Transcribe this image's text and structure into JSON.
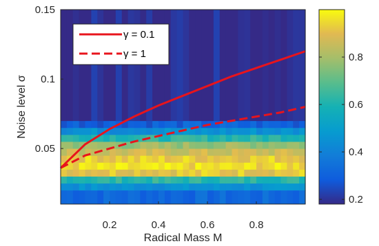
{
  "chart_data": {
    "type": "heatmap",
    "title": "",
    "xlabel": "Radical Mass M",
    "ylabel": "Noise level σ",
    "xlim": [
      0,
      1
    ],
    "ylim": [
      0.01,
      0.15
    ],
    "x_ticks": [
      {
        "v": 0.2,
        "label": "0.2"
      },
      {
        "v": 0.4,
        "label": "0.4"
      },
      {
        "v": 0.6,
        "label": "0.6"
      },
      {
        "v": 0.8,
        "label": "0.8"
      }
    ],
    "y_ticks": [
      {
        "v": 0.05,
        "label": "0.05"
      },
      {
        "v": 0.1,
        "label": "0.1"
      },
      {
        "v": 0.15,
        "label": "0.15"
      }
    ],
    "colorbar": {
      "colormap": "parula",
      "clim": [
        0.18,
        1.0
      ],
      "ticks": [
        {
          "v": 0.2,
          "label": "0.2"
        },
        {
          "v": 0.4,
          "label": "0.4"
        },
        {
          "v": 0.6,
          "label": "0.6"
        },
        {
          "v": 0.8,
          "label": "0.8"
        }
      ]
    },
    "grid": false,
    "heatmap_bands": [
      {
        "sigma_min": 0.01,
        "sigma_max": 0.02,
        "value": 0.32
      },
      {
        "sigma_min": 0.02,
        "sigma_max": 0.025,
        "value": 0.45
      },
      {
        "sigma_min": 0.025,
        "sigma_max": 0.03,
        "value": 0.62
      },
      {
        "sigma_min": 0.03,
        "sigma_max": 0.035,
        "value": 0.92
      },
      {
        "sigma_min": 0.035,
        "sigma_max": 0.04,
        "value": 0.95
      },
      {
        "sigma_min": 0.04,
        "sigma_max": 0.045,
        "value": 0.93
      },
      {
        "sigma_min": 0.045,
        "sigma_max": 0.05,
        "value": 0.86
      },
      {
        "sigma_min": 0.05,
        "sigma_max": 0.055,
        "value": 0.78
      },
      {
        "sigma_min": 0.055,
        "sigma_max": 0.06,
        "value": 0.62
      },
      {
        "sigma_min": 0.06,
        "sigma_max": 0.065,
        "value": 0.45
      },
      {
        "sigma_min": 0.065,
        "sigma_max": 0.07,
        "value": 0.3
      },
      {
        "sigma_min": 0.07,
        "sigma_max": 0.15,
        "value": 0.19
      }
    ],
    "series": [
      {
        "name": "γ = 0.1",
        "color": "#e8141c",
        "style": "solid",
        "x": [
          0.0,
          0.1,
          0.2,
          0.3,
          0.4,
          0.5,
          0.6,
          0.7,
          0.8,
          0.9,
          1.0
        ],
        "y": [
          0.036,
          0.053,
          0.064,
          0.073,
          0.081,
          0.088,
          0.095,
          0.102,
          0.108,
          0.114,
          0.12
        ]
      },
      {
        "name": "γ = 1",
        "color": "#e8141c",
        "style": "dashed",
        "x": [
          0.0,
          0.1,
          0.2,
          0.3,
          0.4,
          0.5,
          0.6,
          0.7,
          0.8,
          0.9,
          1.0
        ],
        "y": [
          0.036,
          0.045,
          0.05,
          0.055,
          0.059,
          0.063,
          0.067,
          0.07,
          0.073,
          0.076,
          0.08
        ]
      }
    ],
    "legend": "top-left"
  }
}
